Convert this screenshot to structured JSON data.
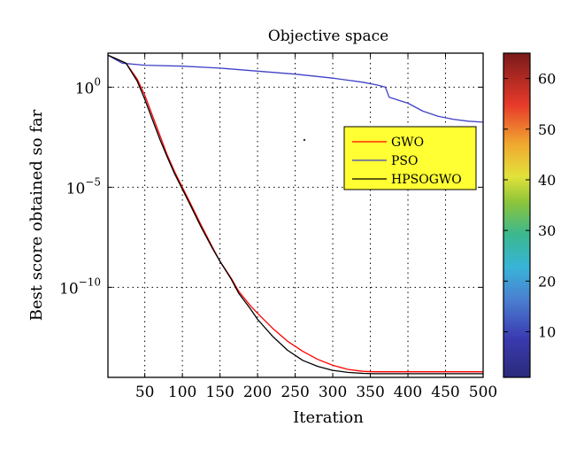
{
  "chart_data": {
    "type": "line",
    "title": "Objective space",
    "xlabel": "Iteration",
    "ylabel": "Best score obtained so far",
    "xlim": [
      1,
      500
    ],
    "ylog": true,
    "ylim_log10": [
      -14.5,
      1.7
    ],
    "grid": true,
    "x_ticks": [
      50,
      100,
      150,
      200,
      250,
      300,
      350,
      400,
      450,
      500
    ],
    "x_tick_labels": [
      "50",
      "100",
      "150",
      "200",
      "250",
      "300",
      "350",
      "400",
      "450",
      "500"
    ],
    "y_ticks_log10": [
      0,
      -5,
      -10
    ],
    "y_tick_labels": [
      {
        "base": "10",
        "exp": "0"
      },
      {
        "base": "10",
        "exp": "−5"
      },
      {
        "base": "10",
        "exp": "−10"
      }
    ],
    "legend_position": "center-right",
    "series": [
      {
        "name": "GWO",
        "color": "#ff0000",
        "x": [
          1,
          25,
          40,
          50,
          60,
          70,
          80,
          90,
          100,
          110,
          125,
          140,
          150,
          165,
          175,
          190,
          200,
          220,
          240,
          260,
          280,
          300,
          320,
          340,
          355,
          360,
          400,
          450,
          500
        ],
        "log10_y": [
          1.6,
          1.2,
          0.4,
          -0.4,
          -1.4,
          -2.4,
          -3.4,
          -4.25,
          -5.0,
          -5.75,
          -6.9,
          -8.0,
          -8.7,
          -9.55,
          -10.2,
          -10.9,
          -11.3,
          -12.05,
          -12.7,
          -13.2,
          -13.6,
          -13.9,
          -14.1,
          -14.2,
          -14.22,
          -14.22,
          -14.22,
          -14.22,
          -14.22
        ]
      },
      {
        "name": "PSO",
        "color": "#4040c8",
        "x": [
          1,
          20,
          50,
          100,
          150,
          200,
          250,
          300,
          340,
          360,
          370,
          375,
          400,
          420,
          440,
          460,
          480,
          500
        ],
        "log10_y": [
          1.6,
          1.2,
          1.1,
          1.05,
          0.95,
          0.8,
          0.65,
          0.45,
          0.25,
          0.1,
          0.0,
          -0.5,
          -0.8,
          -1.2,
          -1.45,
          -1.6,
          -1.7,
          -1.75
        ]
      },
      {
        "name": "HPSOGWO",
        "color": "#000000",
        "x": [
          1,
          25,
          40,
          50,
          60,
          70,
          80,
          90,
          100,
          110,
          125,
          140,
          150,
          165,
          175,
          190,
          200,
          220,
          240,
          260,
          280,
          300,
          320,
          340,
          355,
          360,
          400,
          450,
          500
        ],
        "log10_y": [
          1.6,
          1.2,
          0.3,
          -0.6,
          -1.6,
          -2.6,
          -3.5,
          -4.35,
          -5.1,
          -5.85,
          -7.0,
          -8.05,
          -8.7,
          -9.6,
          -10.3,
          -11.05,
          -11.6,
          -12.45,
          -13.15,
          -13.65,
          -13.95,
          -14.15,
          -14.25,
          -14.3,
          -14.32,
          -14.32,
          -14.32,
          -14.32,
          -14.32
        ]
      }
    ],
    "colorbar": {
      "min": 1,
      "max": 65,
      "ticks": [
        10,
        20,
        30,
        40,
        50,
        60
      ],
      "tick_labels": [
        "10",
        "20",
        "30",
        "40",
        "50",
        "60"
      ],
      "colormap": "jet"
    }
  }
}
